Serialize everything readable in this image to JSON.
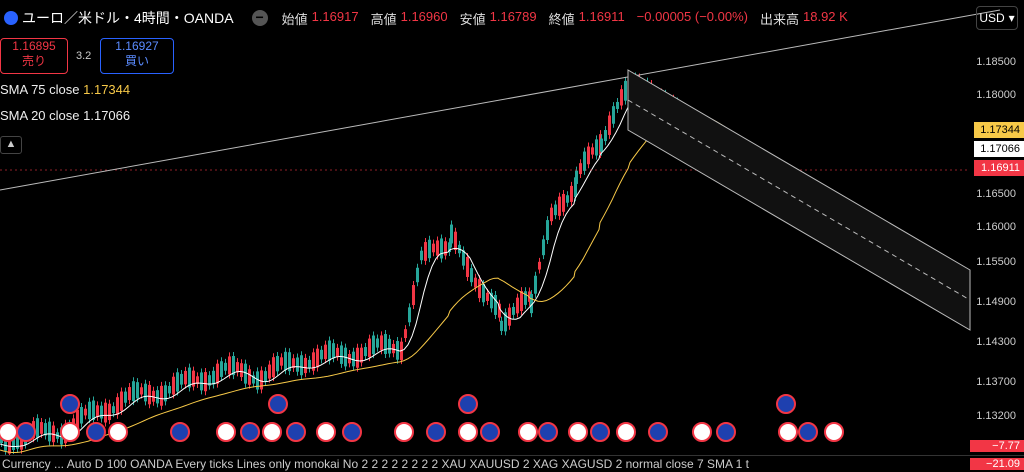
{
  "header": {
    "title": "ユーロ／米ドル・4時間・OANDA",
    "ohlc": [
      {
        "label": "始値",
        "value": "1.16917"
      },
      {
        "label": "高値",
        "value": "1.16960"
      },
      {
        "label": "安値",
        "value": "1.16789"
      },
      {
        "label": "終値",
        "value": "1.16911"
      },
      {
        "label": "",
        "value": "−0.00005 (−0.00%)"
      },
      {
        "label": "出来高",
        "value": "18.92 K"
      }
    ],
    "currency": "USD"
  },
  "trade": {
    "sell_price": "1.16895",
    "sell_label": "売り",
    "spread": "3.2",
    "buy_price": "1.16927",
    "buy_label": "買い"
  },
  "indicators": [
    {
      "label": "SMA 75 close",
      "value": "1.17344"
    },
    {
      "label": "SMA 20 close",
      "value": "1.17066"
    }
  ],
  "price_axis": [
    "1.18500",
    "1.18000",
    "1.16500",
    "1.16000",
    "1.15500",
    "1.14900",
    "1.14300",
    "1.13700",
    "1.13200"
  ],
  "price_tags": [
    {
      "value": "1.17344",
      "color": "#f7c948",
      "text_color": "#000"
    },
    {
      "value": "1.17066",
      "color": "#ffffff",
      "text_color": "#000"
    },
    {
      "value": "1.16911",
      "color": "#f23645",
      "text_color": "#fff"
    }
  ],
  "bottom_bar": {
    "text": "Currency ...  Auto D 100 OANDA Every ticks Lines only monokai No 2 2 2 2 2 2 2 2 XAU XAUUSD 2 XAG XAGUSD 2 normal close 7 SMA 1 t",
    "tag1": "−7.77",
    "tag2": "−21.09"
  },
  "colors": {
    "up": "#26a69a",
    "down": "#f23645",
    "sma75": "#f7c948",
    "sma20": "#ffffff",
    "bg": "#000000"
  },
  "icons": {
    "symbol": "symbol-icon",
    "settings": "dot-menu-icon",
    "chevron": "chevron-up-icon",
    "flags": "country-flag-icon"
  }
}
